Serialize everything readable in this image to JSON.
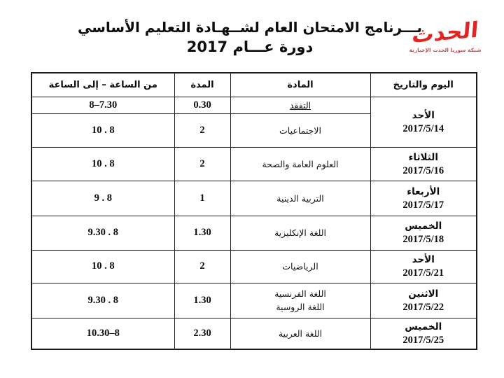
{
  "title": {
    "line1": "بـــرنامج الامتحان العام لشــهـادة التعليم الأساسي",
    "line2": "دورة عـــام 2017"
  },
  "logo": {
    "script_text": "الحدث",
    "tagline": "شبكة سوريا الحدث الإخبارية",
    "color": "#e12525",
    "tagline_color": "#d44a4a"
  },
  "table": {
    "headers": {
      "day_date": "اليوم والتاريخ",
      "subject": "المادة",
      "duration": "المدة",
      "time": "من الساعة – إلى الساعة"
    },
    "rows": [
      {
        "day": "الأحد",
        "date": "2017/5/14",
        "subject": "التفقد",
        "duration": "0.30",
        "time": "8–7.30"
      },
      {
        "subject": "الاجتماعيات",
        "duration": "2",
        "time": "10 . 8"
      },
      {
        "day": "الثلاثاء",
        "date": "2017/5/16",
        "subject": "العلوم العامة والصحة",
        "duration": "2",
        "time": "10 . 8"
      },
      {
        "day": "الأربعاء",
        "date": "2017/5/17",
        "subject": "التربية الدينية",
        "duration": "1",
        "time": "9 . 8"
      },
      {
        "day": "الخميس",
        "date": "2017/5/18",
        "subject": "اللغة الإنكليزية",
        "duration": "1.30",
        "time": "9.30 . 8"
      },
      {
        "day": "الأحد",
        "date": "2017/5/21",
        "subject": "الرياضيات",
        "duration": "2",
        "time": "10 . 8"
      },
      {
        "day": "الاثنين",
        "date": "2017/5/22",
        "subject": "اللغة الفرنسية",
        "subject_line2": "اللغة الروسية",
        "duration": "1.30",
        "time": "9.30 . 8"
      },
      {
        "day": "الخميس",
        "date": "2017/5/25",
        "subject": "اللغة العربية",
        "duration": "2.30",
        "time": "10.30–8"
      }
    ]
  }
}
